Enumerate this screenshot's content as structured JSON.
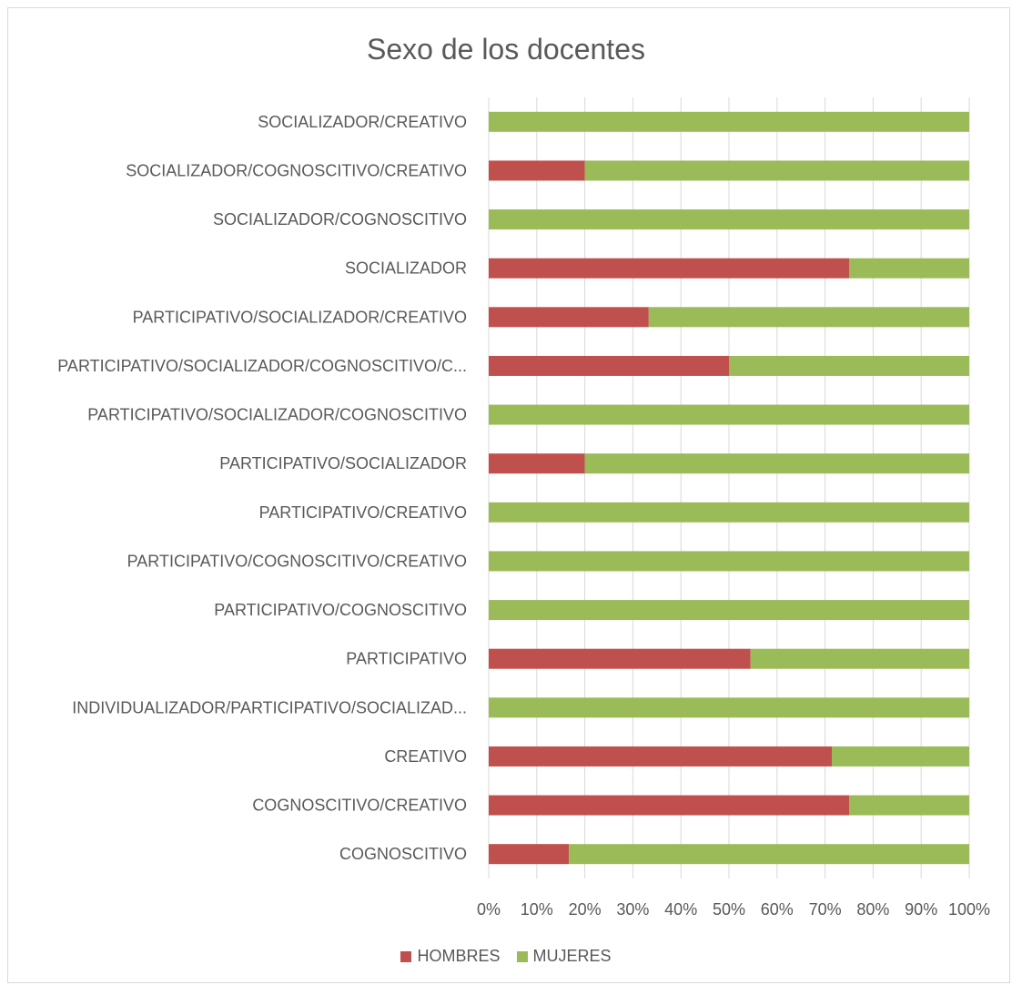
{
  "chart_data": {
    "type": "bar",
    "orientation": "horizontal",
    "stacking": "percent",
    "title": "Sexo de los docentes",
    "categories": [
      "SOCIALIZADOR/CREATIVO",
      "SOCIALIZADOR/COGNOSCITIVO/CREATIVO",
      "SOCIALIZADOR/COGNOSCITIVO",
      "SOCIALIZADOR",
      "PARTICIPATIVO/SOCIALIZADOR/CREATIVO",
      "PARTICIPATIVO/SOCIALIZADOR/COGNOSCITIVO/C...",
      "PARTICIPATIVO/SOCIALIZADOR/COGNOSCITIVO",
      "PARTICIPATIVO/SOCIALIZADOR",
      "PARTICIPATIVO/CREATIVO",
      "PARTICIPATIVO/COGNOSCITIVO/CREATIVO",
      "PARTICIPATIVO/COGNOSCITIVO",
      "PARTICIPATIVO",
      "INDIVIDUALIZADOR/PARTICIPATIVO/SOCIALIZAD...",
      "CREATIVO",
      "COGNOSCITIVO/CREATIVO",
      "COGNOSCITIVO"
    ],
    "series": [
      {
        "name": "HOMBRES",
        "color": "#c0504d",
        "values": [
          0,
          20,
          0,
          75,
          33.3,
          50,
          0,
          20,
          0,
          0,
          0,
          54.5,
          0,
          71.4,
          75,
          16.7
        ]
      },
      {
        "name": "MUJERES",
        "color": "#9bbb59",
        "values": [
          100,
          80,
          100,
          25,
          66.7,
          50,
          100,
          80,
          100,
          100,
          100,
          45.5,
          100,
          28.6,
          25,
          83.3
        ]
      }
    ],
    "xlim": [
      0,
      100
    ],
    "xticks": [
      "0%",
      "10%",
      "20%",
      "30%",
      "40%",
      "50%",
      "60%",
      "70%",
      "80%",
      "90%",
      "100%"
    ],
    "grid": true,
    "legend_position": "bottom",
    "xlabel": "",
    "ylabel": ""
  }
}
